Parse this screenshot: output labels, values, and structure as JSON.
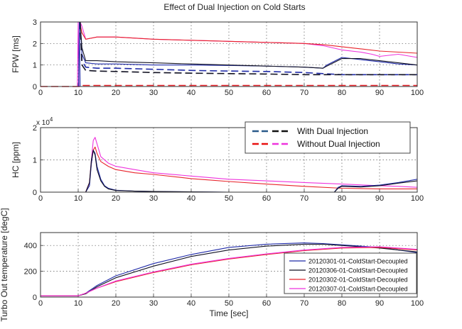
{
  "figure_title": "Effect of Dual Injection on Cold Starts",
  "colors": {
    "dual_a": "#1f2aa8",
    "dual_b": "#111122",
    "nodual_a": "#e8232a",
    "nodual_b": "#ee33dd",
    "legend_dual_dash1": "#2a5a8a",
    "legend_dual_dash2": "#111111",
    "legend_nodual_dash1": "#e81010",
    "legend_nodual_dash2": "#ee33dd"
  },
  "chart_data": [
    {
      "id": "fpw",
      "type": "line",
      "ylabel": "FPW [ms]",
      "xlabel": "",
      "xlim": [
        0,
        100
      ],
      "ylim": [
        0,
        3
      ],
      "xticks": [
        "0",
        "10",
        "20",
        "30",
        "40",
        "50",
        "60",
        "70",
        "80",
        "90",
        "100"
      ],
      "yticks": [
        "0",
        "1",
        "2",
        "3"
      ],
      "grid": true,
      "series": [
        {
          "color": "#ee33dd",
          "style": "solid",
          "x": [
            10.5,
            11,
            12,
            15,
            20,
            30,
            40,
            50,
            60,
            70,
            75,
            80,
            85,
            88,
            90,
            95,
            100
          ],
          "y": [
            3.0,
            2.8,
            2.2,
            2.3,
            2.3,
            2.2,
            2.15,
            2.1,
            2.05,
            2.0,
            1.9,
            1.7,
            1.6,
            1.5,
            1.4,
            1.5,
            1.35
          ]
        },
        {
          "color": "#e8232a",
          "style": "solid",
          "x": [
            10.5,
            11,
            12,
            15,
            20,
            30,
            40,
            50,
            60,
            70,
            75,
            80,
            85,
            90,
            95,
            100
          ],
          "y": [
            2.9,
            2.5,
            2.2,
            2.3,
            2.3,
            2.2,
            2.15,
            2.1,
            2.05,
            2.0,
            1.95,
            1.85,
            1.75,
            1.65,
            1.6,
            1.55
          ]
        },
        {
          "color": "#1f2aa8",
          "style": "solid",
          "x": [
            10.5,
            11,
            12,
            15,
            20,
            30,
            40,
            50,
            60,
            70,
            75,
            76,
            80,
            85,
            90,
            95,
            100
          ],
          "y": [
            3.0,
            1.5,
            1.1,
            1.05,
            1.05,
            1.0,
            1.0,
            0.98,
            0.95,
            0.9,
            0.85,
            1.0,
            1.35,
            1.25,
            1.15,
            1.05,
            1.0
          ]
        },
        {
          "color": "#111122",
          "style": "solid",
          "x": [
            10.5,
            11,
            12,
            15,
            20,
            30,
            40,
            50,
            60,
            70,
            75,
            76,
            80,
            85,
            90,
            95,
            100
          ],
          "y": [
            3.0,
            1.8,
            1.2,
            1.2,
            1.15,
            1.1,
            1.05,
            1.0,
            0.95,
            0.9,
            0.85,
            0.95,
            1.3,
            1.3,
            1.2,
            1.1,
            1.0
          ]
        },
        {
          "color": "#1f2aa8",
          "style": "dashed",
          "x": [
            10.5,
            11,
            12,
            15,
            20,
            30,
            40,
            50,
            60,
            70,
            75,
            80,
            90,
            100
          ],
          "y": [
            3.0,
            1.2,
            0.9,
            0.85,
            0.85,
            0.8,
            0.75,
            0.72,
            0.7,
            0.65,
            0.6,
            0.55,
            0.55,
            0.55
          ]
        },
        {
          "color": "#111122",
          "style": "dashed",
          "x": [
            10.5,
            11,
            12,
            15,
            20,
            30,
            40,
            50,
            60,
            70,
            75,
            80,
            90,
            100
          ],
          "y": [
            3.0,
            1.0,
            0.75,
            0.72,
            0.7,
            0.65,
            0.62,
            0.6,
            0.58,
            0.55,
            0.55,
            0.55,
            0.55,
            0.55
          ]
        },
        {
          "color": "#e8232a",
          "style": "dashed",
          "x": [
            0,
            11,
            11.3,
            100
          ],
          "y": [
            0,
            0,
            0.05,
            0.05
          ]
        },
        {
          "color": "#ee33dd",
          "style": "solid",
          "x": [
            9.8,
            10,
            10.2
          ],
          "y": [
            0,
            3,
            0
          ]
        },
        {
          "color": "#1f2aa8",
          "style": "solid",
          "x": [
            10.1,
            10.3,
            10.5
          ],
          "y": [
            0,
            3,
            0
          ]
        }
      ]
    },
    {
      "id": "hc",
      "type": "line",
      "ylabel": "HC [ppm]",
      "xlabel": "",
      "multiplier": "x 10",
      "multiplier_exp": "4",
      "xlim": [
        0,
        100
      ],
      "ylim": [
        0,
        2
      ],
      "xticks": [
        "0",
        "10",
        "20",
        "30",
        "40",
        "50",
        "60",
        "70",
        "80",
        "90",
        "100"
      ],
      "yticks": [
        "0",
        "1",
        "2"
      ],
      "grid": true,
      "legend": {
        "placement": "top-right",
        "entries": [
          "With Dual Injection",
          "Without Dual Injection"
        ]
      },
      "series": [
        {
          "color": "#ee33dd",
          "x": [
            0,
            12,
            13,
            13.5,
            14,
            14.5,
            15,
            16,
            18,
            20,
            25,
            30,
            40,
            50,
            60,
            70,
            80,
            90,
            95,
            100
          ],
          "y": [
            0,
            0,
            0.3,
            1.0,
            1.6,
            1.7,
            1.5,
            1.1,
            0.9,
            0.8,
            0.7,
            0.6,
            0.5,
            0.4,
            0.35,
            0.3,
            0.25,
            0.2,
            0.18,
            0.15
          ]
        },
        {
          "color": "#e8232a",
          "x": [
            0,
            12,
            13,
            13.5,
            14,
            14.5,
            15,
            16,
            18,
            20,
            25,
            30,
            40,
            50,
            60,
            70,
            80,
            90,
            95,
            100
          ],
          "y": [
            0,
            0,
            0.3,
            0.9,
            1.3,
            1.4,
            1.2,
            0.95,
            0.8,
            0.7,
            0.6,
            0.55,
            0.42,
            0.33,
            0.25,
            0.18,
            0.12,
            0.1,
            0.1,
            0.1
          ]
        },
        {
          "color": "#1f2aa8",
          "x": [
            0,
            12,
            13,
            13.5,
            14,
            14.5,
            15,
            16,
            17,
            18,
            20,
            25,
            30,
            40,
            50,
            60,
            70,
            78,
            79,
            80,
            85,
            90,
            95,
            100
          ],
          "y": [
            0,
            0,
            0.2,
            0.9,
            1.3,
            1.2,
            0.8,
            0.4,
            0.2,
            0.12,
            0.06,
            0.03,
            0.02,
            0.01,
            0,
            0,
            0,
            0,
            0.15,
            0.2,
            0.18,
            0.22,
            0.3,
            0.4
          ]
        },
        {
          "color": "#111122",
          "x": [
            0,
            12,
            13,
            13.5,
            14,
            14.5,
            15,
            16,
            17,
            18,
            20,
            25,
            30,
            40,
            50,
            60,
            70,
            78,
            79,
            80,
            85,
            90,
            95,
            100
          ],
          "y": [
            0,
            0,
            0.3,
            1.0,
            1.3,
            1.15,
            0.7,
            0.35,
            0.18,
            0.1,
            0.05,
            0.03,
            0.02,
            0.01,
            0,
            0,
            0,
            0,
            0.12,
            0.18,
            0.16,
            0.2,
            0.28,
            0.35
          ]
        }
      ]
    },
    {
      "id": "turbo",
      "type": "line",
      "ylabel": "Turbo Out temperature [degC]",
      "xlabel": "Time [sec]",
      "xlim": [
        0,
        100
      ],
      "ylim": [
        0,
        500
      ],
      "xticks": [
        "0",
        "10",
        "20",
        "30",
        "40",
        "50",
        "60",
        "70",
        "80",
        "90",
        "100"
      ],
      "yticks": [
        "0",
        "200",
        "400"
      ],
      "grid": true,
      "legend": {
        "placement": "bottom-right",
        "entries": [
          {
            "name": "20120301-01-ColdStart-Decoupled",
            "color": "#1f2aa8"
          },
          {
            "name": "20120306-01-ColdStart-Decoupled",
            "color": "#111122"
          },
          {
            "name": "20120302-01-ColdStart-Decoupled",
            "color": "#e8232a"
          },
          {
            "name": "20120307-01-ColdStart-Decoupled",
            "color": "#ee33dd"
          }
        ]
      },
      "series": [
        {
          "name": "20120301-01-ColdStart-Decoupled",
          "color": "#1f2aa8",
          "x": [
            0,
            10,
            12,
            15,
            20,
            30,
            40,
            50,
            60,
            70,
            75,
            80,
            90,
            100
          ],
          "y": [
            10,
            10,
            30,
            90,
            165,
            260,
            330,
            385,
            410,
            420,
            415,
            405,
            385,
            345
          ]
        },
        {
          "name": "20120306-01-ColdStart-Decoupled",
          "color": "#111122",
          "x": [
            0,
            10,
            12,
            15,
            20,
            30,
            40,
            50,
            60,
            70,
            75,
            80,
            90,
            100
          ],
          "y": [
            10,
            10,
            25,
            80,
            150,
            240,
            315,
            365,
            395,
            410,
            410,
            400,
            380,
            350
          ]
        },
        {
          "name": "20120302-01-ColdStart-Decoupled",
          "color": "#e8232a",
          "x": [
            0,
            10,
            12,
            15,
            20,
            30,
            40,
            50,
            60,
            70,
            80,
            90,
            100
          ],
          "y": [
            10,
            10,
            30,
            70,
            120,
            190,
            250,
            295,
            330,
            360,
            380,
            385,
            365
          ]
        },
        {
          "name": "20120307-01-ColdStart-Decoupled",
          "color": "#ee33dd",
          "x": [
            0,
            10,
            12,
            15,
            20,
            30,
            40,
            50,
            60,
            70,
            80,
            90,
            100
          ],
          "y": [
            10,
            10,
            30,
            70,
            125,
            195,
            255,
            300,
            335,
            365,
            385,
            390,
            370
          ]
        }
      ]
    }
  ]
}
